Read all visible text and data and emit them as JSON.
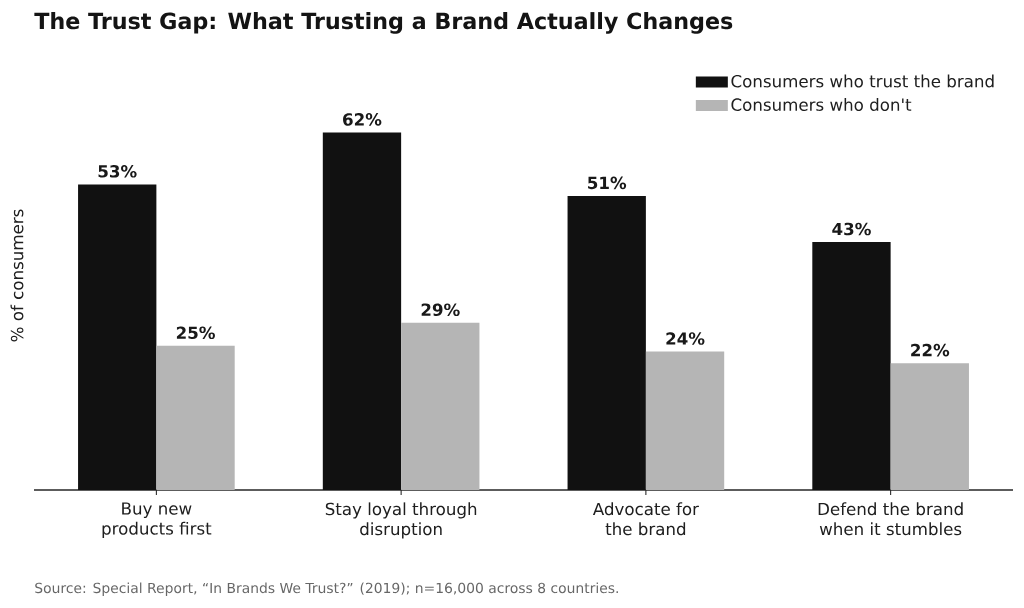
{
  "chart_data": {
    "type": "bar",
    "title": "The Trust Gap: What Trusting a Brand Actually Changes",
    "ylabel": "% of consumers",
    "categories": [
      "Buy new\nproducts first",
      "Stay loyal through\ndisruption",
      "Advocate for\nthe brand",
      "Defend the brand\nwhen it stumbles"
    ],
    "series": [
      {
        "name": "Consumers who trust the brand",
        "color": "#111111",
        "values": [
          53,
          62,
          51,
          43
        ],
        "value_labels": [
          "53%",
          "62%",
          "51%",
          "43%"
        ]
      },
      {
        "name": "Consumers who don't",
        "color": "#b5b5b5",
        "values": [
          25,
          29,
          24,
          22
        ],
        "value_labels": [
          "25%",
          "29%",
          "24%",
          "22%"
        ]
      }
    ],
    "legend": "top right",
    "annotations": [
      "Source: Special Report, “In Brands We Trust?” (2019); n=16,000 across 8 countries."
    ]
  }
}
